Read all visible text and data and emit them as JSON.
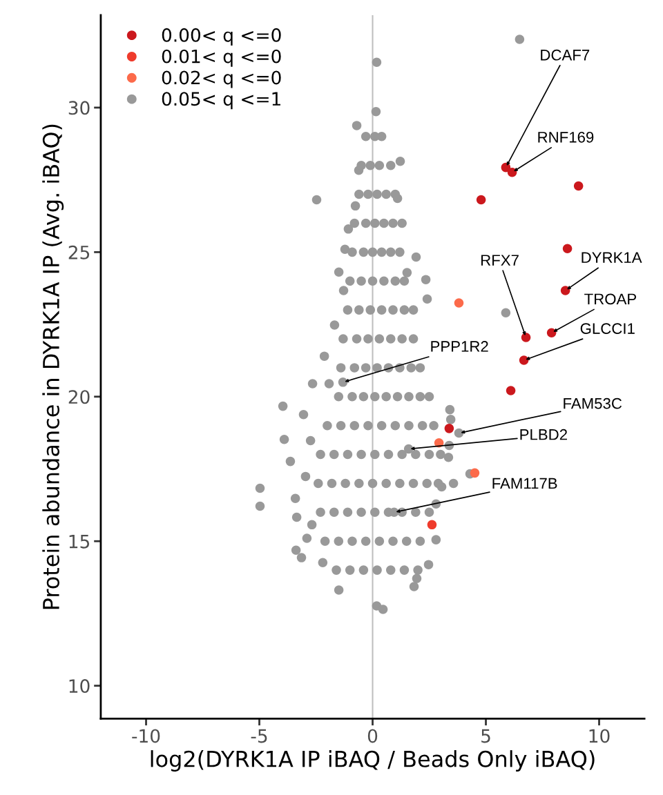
{
  "chart_data": {
    "type": "scatter",
    "xlabel": "log2(DYRK1A IP iBAQ / Beads Only iBAQ)",
    "ylabel": "Protein abundance in DYRK1A IP (Avg. iBAQ)",
    "xlim": [
      -12,
      12
    ],
    "ylim": [
      8.86,
      33.2
    ],
    "xticks": [
      -10,
      -5,
      0,
      5,
      10
    ],
    "yticks": [
      10,
      15,
      20,
      25,
      30
    ],
    "grid": false,
    "legend": "top left",
    "marker": "circle",
    "ref_lines": [
      {
        "axis": "x",
        "value": 0,
        "color": "#bebebe"
      }
    ],
    "series": [
      {
        "name": "0.00< q <=0",
        "color": "#cb181d",
        "x": [
          5.88,
          6.16,
          9.09,
          4.79,
          8.6,
          8.51,
          7.9,
          6.77,
          6.68,
          6.1,
          3.38
        ],
        "values": [
          27.93,
          27.76,
          27.29,
          26.81,
          25.12,
          23.67,
          22.21,
          22.05,
          21.26,
          20.21,
          18.9
        ]
      },
      {
        "name": "0.01< q <=0",
        "color": "#ef3b2c",
        "x": [
          2.62
        ],
        "values": [
          15.57
        ]
      },
      {
        "name": "0.02< q <=0",
        "color": "#fc6a4a",
        "x": [
          3.81,
          2.93,
          4.51
        ],
        "values": [
          23.24,
          18.4,
          17.36
        ]
      },
      {
        "name": "0.05< q <=1",
        "color": "#999999",
        "x": [
          -1.31,
          1.59,
          0.95,
          6.49,
          3.81,
          5.88,
          4.3,
          -4.97,
          -4.97,
          -3.96,
          -3.9,
          -3.63,
          -3.41,
          -3.35,
          -3.38,
          -3.14,
          -2.47,
          0.18,
          0.15,
          -0.7,
          0.18,
          0.46,
          -1.49,
          2.41,
          2.35,
          1.22,
          1.1,
          1.92,
          1.52,
          2.47,
          1.83,
          3.41,
          3.45,
          3.38,
          3.35,
          3.57,
          3.05,
          2.8,
          2.8,
          1.95,
          -1.28,
          -1.49,
          -1.92,
          -2.13,
          -2.65,
          -3.05,
          -2.74,
          -2.96,
          -2.68,
          -2.9,
          -2.2,
          -0.61,
          -0.76,
          -1.07,
          -1.22,
          -1.68,
          -0.3,
          0.1,
          0.4,
          -0.5,
          -0.1,
          0.3,
          0.8,
          -0.6,
          -0.2,
          0.2,
          0.6,
          1.0,
          -0.8,
          -0.3,
          0.1,
          0.5,
          0.9,
          1.3,
          -0.9,
          -0.4,
          0,
          0.4,
          0.8,
          1.2,
          -1.0,
          -0.5,
          0,
          0.5,
          1.0,
          1.4,
          -1.1,
          -0.6,
          -0.1,
          0.4,
          0.9,
          1.4,
          1.8,
          -1.3,
          -0.7,
          -0.2,
          0.3,
          0.8,
          1.3,
          1.8,
          -1.4,
          -0.8,
          -0.3,
          0.2,
          0.7,
          1.2,
          1.7,
          2.1,
          -1.5,
          -0.9,
          -0.4,
          0.1,
          0.6,
          1.1,
          1.6,
          2.1,
          2.5,
          -2.0,
          -1.4,
          -0.8,
          -0.2,
          0.4,
          1.0,
          1.6,
          2.2,
          2.7,
          -2.3,
          -1.7,
          -1.1,
          -0.5,
          0.1,
          0.7,
          1.3,
          1.9,
          2.5,
          3.0,
          -2.4,
          -1.8,
          -1.2,
          -0.6,
          0,
          0.6,
          1.2,
          1.8,
          2.4,
          2.9,
          -2.3,
          -1.7,
          -1.1,
          -0.5,
          0.1,
          0.7,
          1.3,
          1.9,
          2.5,
          -2.1,
          -1.5,
          -0.9,
          -0.3,
          0.3,
          0.9,
          1.5,
          2.1,
          -1.6,
          -1.0,
          -0.4,
          0.2,
          0.8,
          1.4,
          2.0
        ],
        "values": [
          20.5,
          18.19,
          16.0,
          32.36,
          18.74,
          22.9,
          17.33,
          16.83,
          16.21,
          19.67,
          18.52,
          17.76,
          16.48,
          15.83,
          14.69,
          14.43,
          26.81,
          31.57,
          29.86,
          29.38,
          12.76,
          12.64,
          13.31,
          23.38,
          24.05,
          28.14,
          26.86,
          24.83,
          24.29,
          14.19,
          13.43,
          19.55,
          19.21,
          18.31,
          17.9,
          17.0,
          16.88,
          16.29,
          15.05,
          13.71,
          23.67,
          24.31,
          20.45,
          21.4,
          20.45,
          19.38,
          18.48,
          17.24,
          15.57,
          15.1,
          14.26,
          27.83,
          26.6,
          25.8,
          25.1,
          22.48,
          29,
          29,
          29,
          28,
          28,
          28,
          28,
          27,
          27,
          27,
          27,
          27,
          26,
          26,
          26,
          26,
          26,
          26,
          25,
          25,
          25,
          25,
          25,
          25,
          24,
          24,
          24,
          24,
          24,
          24,
          23,
          23,
          23,
          23,
          23,
          23,
          23,
          22,
          22,
          22,
          22,
          22,
          22,
          22,
          21,
          21,
          21,
          21,
          21,
          21,
          21,
          21,
          20,
          20,
          20,
          20,
          20,
          20,
          20,
          20,
          20,
          19,
          19,
          19,
          19,
          19,
          19,
          19,
          19,
          19,
          18,
          18,
          18,
          18,
          18,
          18,
          18,
          18,
          18,
          18,
          17,
          17,
          17,
          17,
          17,
          17,
          17,
          17,
          17,
          17,
          16,
          16,
          16,
          16,
          16,
          16,
          16,
          16,
          16,
          15,
          15,
          15,
          15,
          15,
          15,
          15,
          15,
          14,
          14,
          14,
          14,
          14,
          14,
          14
        ]
      }
    ],
    "annotations": [
      {
        "text": "DCAF7",
        "x": 5.88,
        "y": 27.93
      },
      {
        "text": "RNF169",
        "x": 6.16,
        "y": 27.76
      },
      {
        "text": "DYRK1A",
        "x": 8.51,
        "y": 23.67
      },
      {
        "text": "TROAP",
        "x": 7.9,
        "y": 22.21
      },
      {
        "text": "GLCCI1",
        "x": 6.68,
        "y": 21.26
      },
      {
        "text": "RFX7",
        "x": 6.77,
        "y": 22.05
      },
      {
        "text": "PPP1R2",
        "x": -1.31,
        "y": 20.5
      },
      {
        "text": "FAM53C",
        "x": 3.81,
        "y": 18.74
      },
      {
        "text": "PLBD2",
        "x": 1.59,
        "y": 18.19
      },
      {
        "text": "FAM117B",
        "x": 0.95,
        "y": 16.0
      }
    ]
  }
}
